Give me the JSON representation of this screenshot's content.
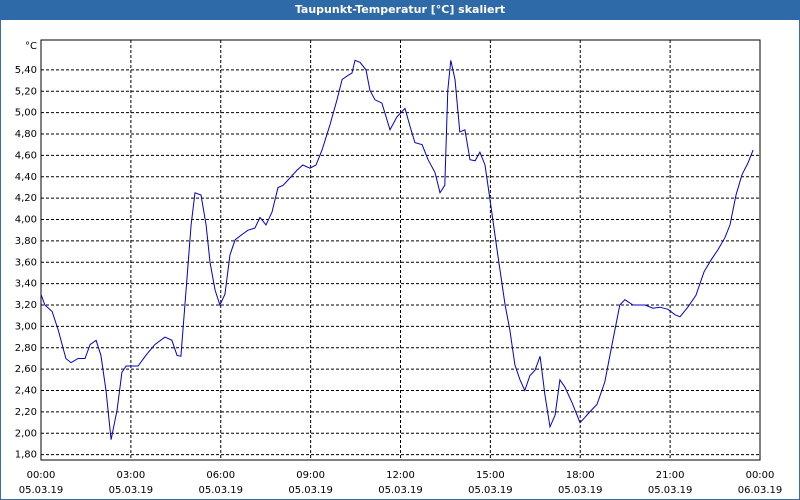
{
  "chart_data": {
    "type": "line",
    "title": "Taupunkt-Temperatur [°C] skaliert",
    "y_unit": "°C",
    "xlim": [
      0,
      24
    ],
    "xticks": [
      {
        "value": 0,
        "label": "00:00"
      },
      {
        "value": 3,
        "label": "03:00"
      },
      {
        "value": 6,
        "label": "06:00"
      },
      {
        "value": 9,
        "label": "09:00"
      },
      {
        "value": 12,
        "label": "12:00"
      },
      {
        "value": 15,
        "label": "15:00"
      },
      {
        "value": 18,
        "label": "18:00"
      },
      {
        "value": 21,
        "label": "21:00"
      },
      {
        "value": 24,
        "label": "00:00"
      }
    ],
    "x_tick_dates": [
      "05.03.19",
      "05.03.19",
      "05.03.19",
      "05.03.19",
      "05.03.19",
      "05.03.19",
      "05.03.19",
      "05.03.19",
      "06.03.19"
    ],
    "ylim": [
      1.75,
      5.68
    ],
    "yticks": [
      {
        "value": 1.8,
        "label": "1,80"
      },
      {
        "value": 2.0,
        "label": "2,00"
      },
      {
        "value": 2.2,
        "label": "2,20"
      },
      {
        "value": 2.4,
        "label": "2,40"
      },
      {
        "value": 2.6,
        "label": "2,60"
      },
      {
        "value": 2.8,
        "label": "2,80"
      },
      {
        "value": 3.0,
        "label": "3,00"
      },
      {
        "value": 3.2,
        "label": "3,20"
      },
      {
        "value": 3.4,
        "label": "3,40"
      },
      {
        "value": 3.6,
        "label": "3,60"
      },
      {
        "value": 3.8,
        "label": "3,80"
      },
      {
        "value": 4.0,
        "label": "4,00"
      },
      {
        "value": 4.2,
        "label": "4,20"
      },
      {
        "value": 4.4,
        "label": "4,40"
      },
      {
        "value": 4.6,
        "label": "4,60"
      },
      {
        "value": 4.8,
        "label": "4,80"
      },
      {
        "value": 5.0,
        "label": "5,00"
      },
      {
        "value": 5.2,
        "label": "5,20"
      },
      {
        "value": 5.4,
        "label": "5,40"
      }
    ],
    "grid": true,
    "x": [
      0,
      0.13,
      0.37,
      0.57,
      0.83,
      1.0,
      1.24,
      1.47,
      1.64,
      1.84,
      2.0,
      2.17,
      2.34,
      2.54,
      2.7,
      2.84,
      3.24,
      3.5,
      3.8,
      4.14,
      4.37,
      4.54,
      4.67,
      4.87,
      5.01,
      5.14,
      5.34,
      5.51,
      5.64,
      5.81,
      5.97,
      6.14,
      6.31,
      6.48,
      6.71,
      6.91,
      7.14,
      7.31,
      7.51,
      7.71,
      7.91,
      8.08,
      8.31,
      8.54,
      8.74,
      8.98,
      9.18,
      9.38,
      9.65,
      9.88,
      10.05,
      10.25,
      10.38,
      10.48,
      10.65,
      10.85,
      10.98,
      11.15,
      11.38,
      11.65,
      11.88,
      12.15,
      12.32,
      12.48,
      12.72,
      12.92,
      13.15,
      13.32,
      13.48,
      13.58,
      13.68,
      13.82,
      13.98,
      14.15,
      14.32,
      14.49,
      14.65,
      14.82,
      14.99,
      15.22,
      15.49,
      15.65,
      15.82,
      15.99,
      16.15,
      16.32,
      16.49,
      16.66,
      16.82,
      16.99,
      17.16,
      17.32,
      17.49,
      17.72,
      17.99,
      18.16,
      18.32,
      18.56,
      18.82,
      19.06,
      19.32,
      19.49,
      19.76,
      20.16,
      20.43,
      20.66,
      20.93,
      21.16,
      21.33,
      21.59,
      21.86,
      22.13,
      22.36,
      22.6,
      22.83,
      23.0,
      23.2,
      23.4,
      23.6,
      23.77
    ],
    "series": [
      {
        "name": "Taupunkt-Temperatur",
        "color": "#0000cc",
        "values": [
          3.3,
          3.2,
          3.14,
          2.97,
          2.7,
          2.66,
          2.7,
          2.7,
          2.83,
          2.87,
          2.73,
          2.4,
          1.94,
          2.22,
          2.57,
          2.63,
          2.63,
          2.73,
          2.83,
          2.9,
          2.87,
          2.73,
          2.72,
          3.44,
          3.95,
          4.25,
          4.23,
          3.95,
          3.6,
          3.34,
          3.2,
          3.3,
          3.67,
          3.81,
          3.86,
          3.9,
          3.92,
          4.02,
          3.95,
          4.07,
          4.3,
          4.32,
          4.39,
          4.46,
          4.51,
          4.48,
          4.51,
          4.65,
          4.89,
          5.12,
          5.31,
          5.35,
          5.37,
          5.49,
          5.47,
          5.4,
          5.21,
          5.12,
          5.09,
          4.84,
          4.96,
          5.04,
          4.87,
          4.72,
          4.7,
          4.56,
          4.44,
          4.25,
          4.32,
          5.21,
          5.49,
          5.31,
          4.82,
          4.84,
          4.56,
          4.55,
          4.63,
          4.51,
          4.18,
          3.72,
          3.2,
          2.97,
          2.64,
          2.5,
          2.4,
          2.54,
          2.59,
          2.72,
          2.36,
          2.06,
          2.17,
          2.5,
          2.43,
          2.29,
          2.1,
          2.15,
          2.2,
          2.27,
          2.48,
          2.83,
          3.2,
          3.25,
          3.2,
          3.2,
          3.17,
          3.18,
          3.16,
          3.11,
          3.09,
          3.18,
          3.29,
          3.51,
          3.62,
          3.72,
          3.83,
          3.95,
          4.23,
          4.42,
          4.53,
          4.65
        ]
      }
    ]
  }
}
